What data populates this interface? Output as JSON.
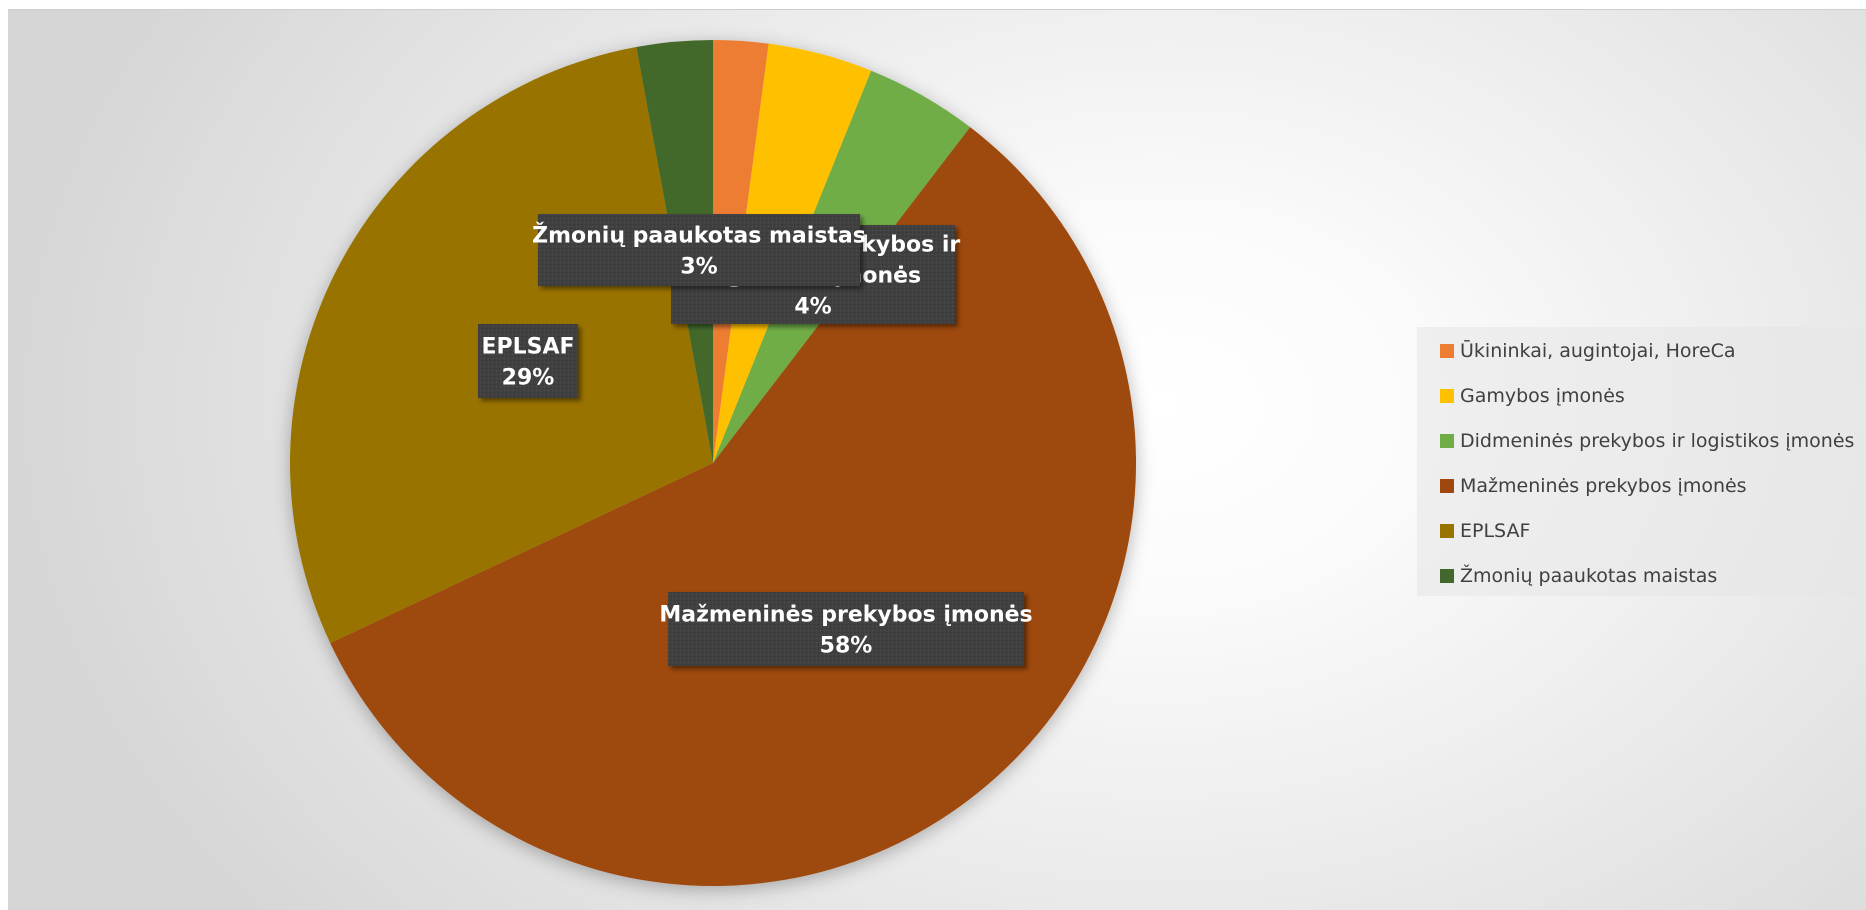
{
  "chart_data": {
    "type": "pie",
    "categories": [
      "Ūkininkai, augintojai, HoreCa",
      "Gamybos įmonės",
      "Didmeninės prekybos ir logistikos įmonės",
      "Mažmeninės prekybos įmonės",
      "EPLSAF",
      "Žmonių paaukotas maistas"
    ],
    "values": [
      2.1,
      4.0,
      4.3,
      57.6,
      29.1,
      2.9
    ],
    "colors": [
      "#ED7D31",
      "#FFC000",
      "#70AD47",
      "#9E480E",
      "#997300",
      "#43682B"
    ],
    "data_labels": [
      {
        "category": "Didmeninės prekybos ir logistikos įmonės",
        "line1": "Didmeninės prekybos ir",
        "line2": "logistikos įmonės",
        "percent": "4%"
      },
      {
        "category": "Mažmeninės prekybos įmonės",
        "line1": "Mažmeninės prekybos įmonės",
        "line2": "",
        "percent": "58%"
      },
      {
        "category": "EPLSAF",
        "line1": "EPLSAF",
        "line2": "",
        "percent": "29%"
      },
      {
        "category": "Žmonių paaukotas maistas",
        "line1": "Žmonių paaukotas maistas",
        "line2": "",
        "percent": "3%"
      }
    ],
    "legend": {
      "position": "right"
    },
    "label_box_color": "#404040",
    "label_text_color": "#ffffff"
  }
}
